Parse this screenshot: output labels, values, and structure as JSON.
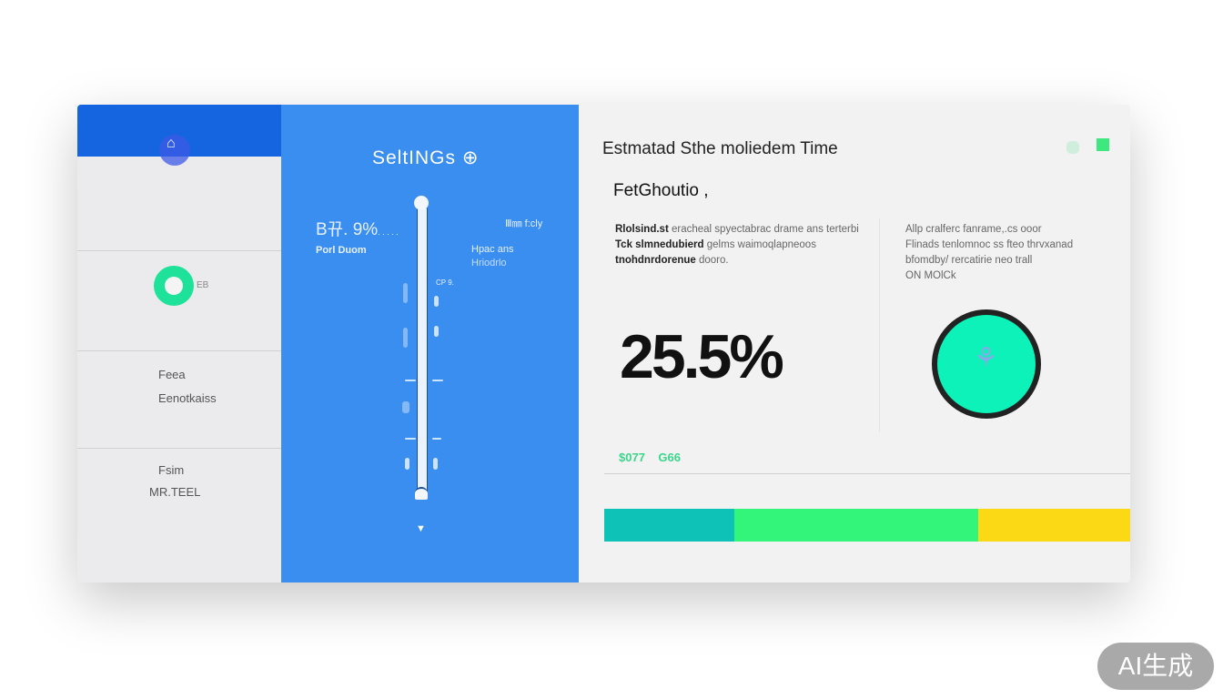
{
  "sidebar": {
    "logo_icon": "app-logo-icon",
    "avatar_tag": "EB",
    "items": [
      {
        "line1": "Feea",
        "line2": "Eenotkaiss"
      },
      {
        "line1": "Fsim",
        "line2": "MR.TEEL"
      }
    ]
  },
  "settings_panel": {
    "title": "SeltINGs",
    "title_icon": "globe-icon",
    "left_value": "B뀨. 9%",
    "left_value_suffix": ". . . . .",
    "left_label": "Porl Duom",
    "right_label": "Ⅲ㎜ f:cly",
    "right_label2": "Hpac ans",
    "right_label3": "Hriodrlo",
    "tick_label": "CP 9.",
    "slider_color": "#eaf2ff"
  },
  "main": {
    "title": "Estmatad Sthe moliedem Time",
    "subtitle": "FetGhoutio ,",
    "para_left": {
      "line1_bold": "Rlolsind.st",
      "line1": "eracheal spyectabrac drame ans terterbi",
      "line2_bold": "Tck slmnedubierd",
      "line2": "gelms waimoqlapneoos",
      "line3_bold": "tnohdnrdorenue",
      "line3": "dooro."
    },
    "para_right": {
      "line1": "Allp cralferc fanrame,.cs  ooor",
      "line2": "Flinads tenlomnoc ss fteo thrvxanad",
      "line3": "bfomdby/ rercatirie neo trall",
      "line4": "ON MOlCk"
    },
    "big_value": "25.5%",
    "stat1": "$077",
    "stat2": "G66",
    "circle_icon": "figure-icon",
    "progress_segments": [
      {
        "fraction": 0.247,
        "color": "#0fc2b8"
      },
      {
        "fraction": 0.464,
        "color": "#33f57a"
      },
      {
        "fraction": 0.289,
        "color": "#fbd915"
      }
    ]
  },
  "watermark": "AI生成",
  "colors": {
    "sidebar_header": "#1565e0",
    "settings_bg": "#3a8ef0",
    "accent_green": "#1ee29a"
  }
}
